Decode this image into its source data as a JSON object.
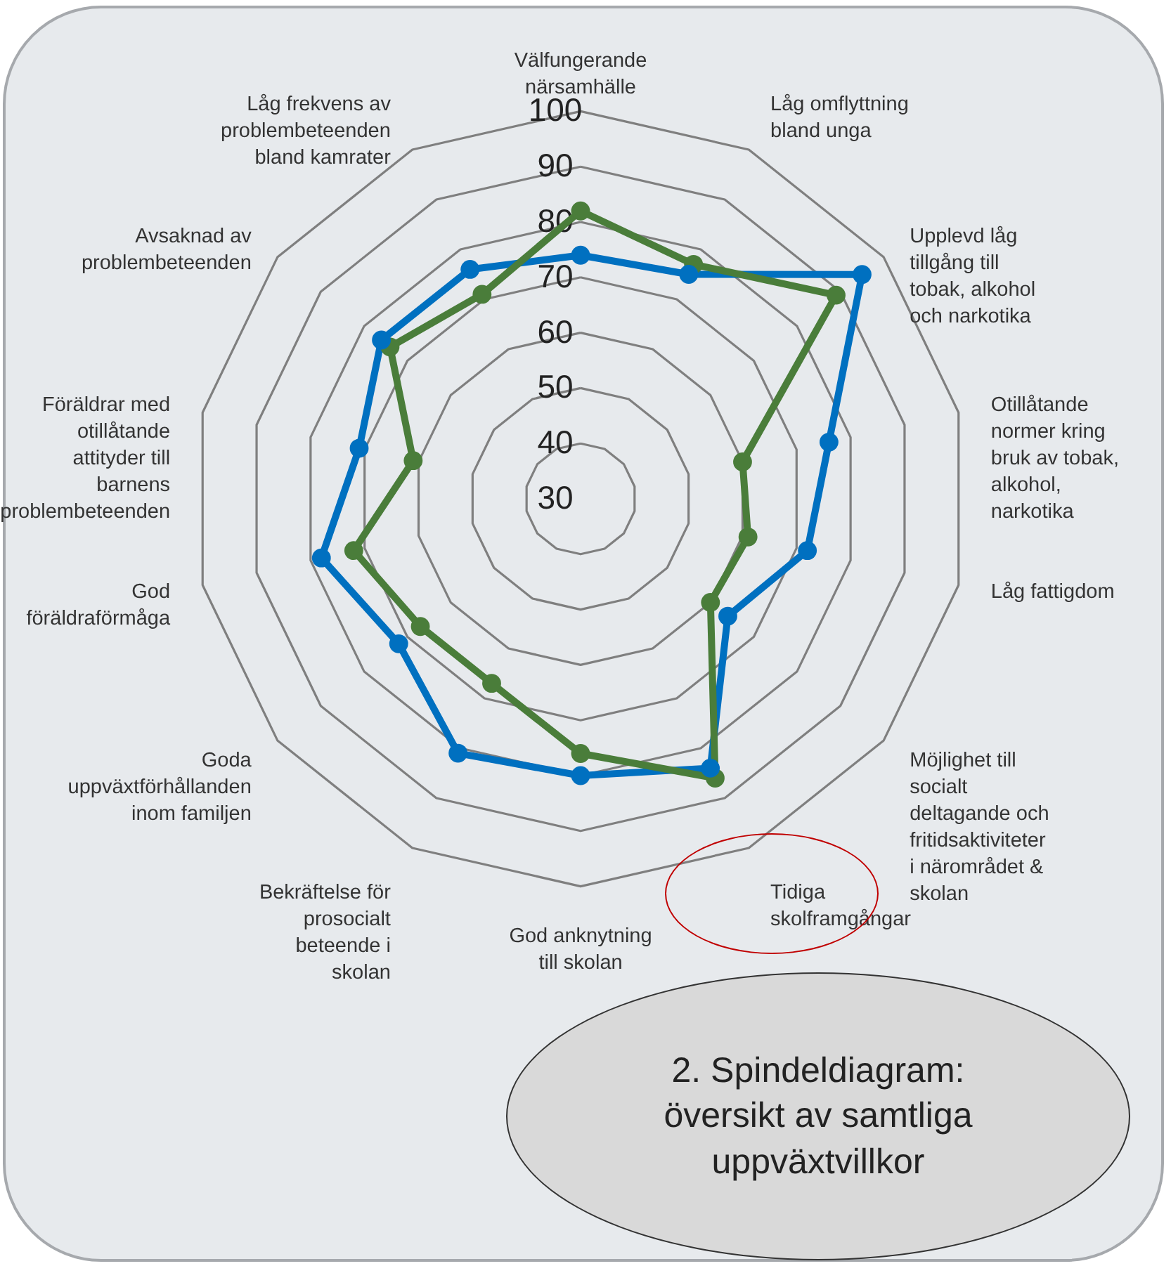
{
  "chart_data": {
    "type": "radar",
    "title": "2. Spindeldiagram: översikt av samtliga uppväxtvillkor",
    "categories": [
      "Välfungerande närsamhälle",
      "Låg omflyttning bland unga",
      "Upplevd låg tillgång till tobak, alkohol och narkotika",
      "Otillåtande normer kring bruk av tobak, alkohol, narkotika",
      "Låg fattigdom",
      "Möjlighet till socialt deltagande och fritidsaktiviteter i närområdet & skolan",
      "Tidiga skolframgångar",
      "God anknytning till skolan",
      "Bekräftelse för prosocialt beteende i skolan",
      "Goda uppväxtförhållanden inom familjen",
      "God föräldraförmåga",
      "Föräldrar med otillåtande attityder till barnens problembeteenden",
      "Avsaknad av problembeteenden",
      "Låg frekvens av problembeteenden bland kamrater"
    ],
    "series": [
      {
        "color": "#0070c0",
        "values": [
          74,
          75,
          95,
          76,
          72,
          64,
          84,
          80,
          81,
          72,
          78,
          71,
          76,
          76
        ]
      },
      {
        "color": "#4a7d3a",
        "values": [
          82,
          77,
          89,
          60,
          61,
          60,
          86,
          76,
          67,
          67,
          72,
          61,
          74,
          71
        ]
      }
    ],
    "ylim": [
      30,
      100
    ],
    "yticks": [
      30,
      40,
      50,
      60,
      70,
      80,
      90,
      100
    ],
    "grid": true,
    "marker": "circle",
    "line_style": "solid"
  }
}
